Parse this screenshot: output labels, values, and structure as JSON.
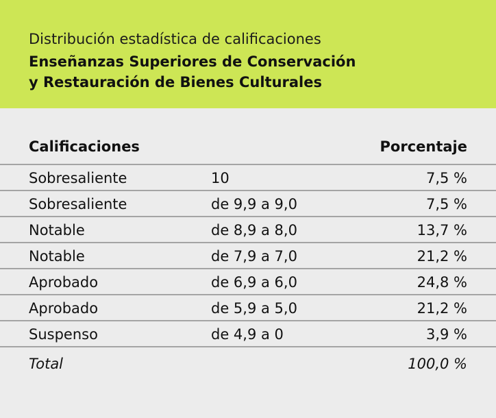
{
  "header": {
    "subtitle": "Distribución estadística de calificaciones",
    "title_line1": "Enseñanzas Superiores de Conservación",
    "title_line2": "y Restauración de Bienes Culturales"
  },
  "table": {
    "columns": [
      "Calificaciones",
      "",
      "Porcentaje"
    ],
    "rows": [
      {
        "grade": "Sobresaliente",
        "range": "10",
        "percent": "7,5 %"
      },
      {
        "grade": "Sobresaliente",
        "range": "de 9,9 a 9,0",
        "percent": "7,5 %"
      },
      {
        "grade": "Notable",
        "range": "de 8,9 a 8,0",
        "percent": "13,7 %"
      },
      {
        "grade": "Notable",
        "range": "de 7,9 a 7,0",
        "percent": "21,2 %"
      },
      {
        "grade": "Aprobado",
        "range": "de 6,9 a 6,0",
        "percent": "24,8 %"
      },
      {
        "grade": "Aprobado",
        "range": "de 5,9 a 5,0",
        "percent": "21,2 %"
      },
      {
        "grade": "Suspenso",
        "range": "de 4,9 a 0",
        "percent": "3,9 %"
      }
    ],
    "total": {
      "label": "Total",
      "percent": "100,0 %"
    }
  },
  "colors": {
    "header_background": "#cde655",
    "page_background": "#ececec",
    "rule": "#a4a4a4"
  }
}
